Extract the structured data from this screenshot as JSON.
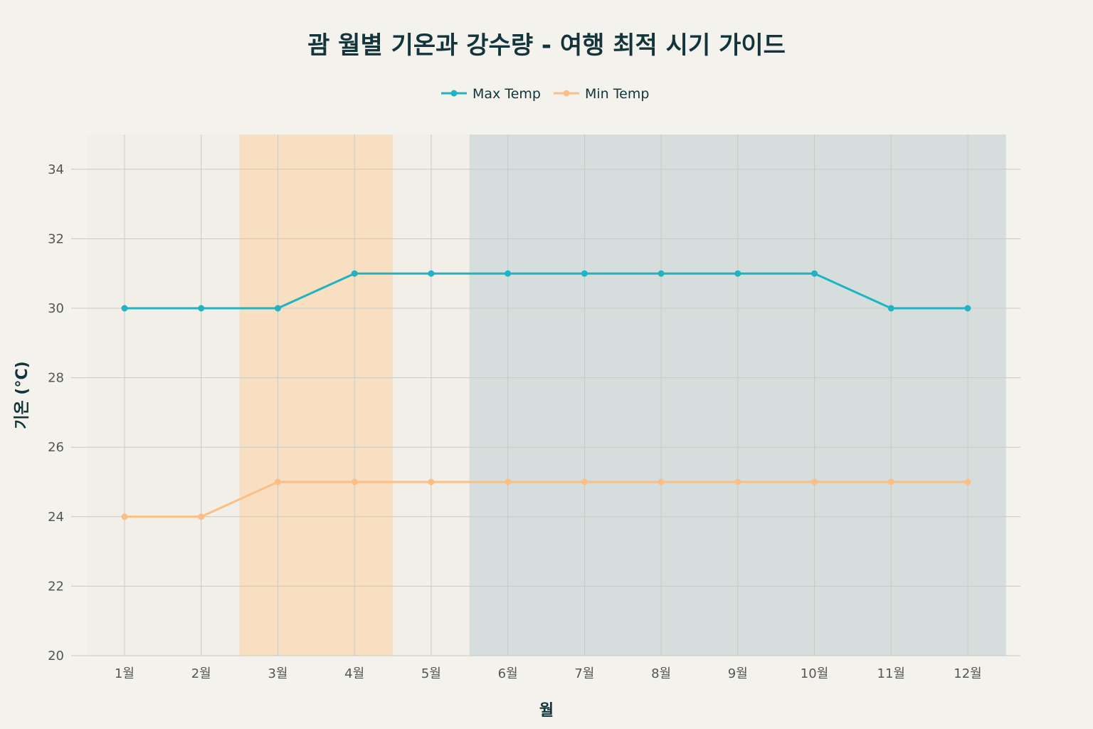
{
  "chart_data": {
    "type": "line",
    "title": "괌 월별 기온과 강수량 - 여행 최적 시기 가이드",
    "xlabel": "월",
    "ylabel": "기온 (°C)",
    "categories": [
      "1월",
      "2월",
      "3월",
      "4월",
      "5월",
      "6월",
      "7월",
      "8월",
      "9월",
      "10월",
      "11월",
      "12월"
    ],
    "ylim": [
      20,
      35
    ],
    "yticks": [
      20,
      22,
      24,
      26,
      28,
      30,
      32,
      34
    ],
    "grid": true,
    "legend_position": "top-center",
    "series": [
      {
        "name": "Max Temp",
        "color": "#1fb3c4",
        "values": [
          30,
          30,
          30,
          31,
          31,
          31,
          31,
          31,
          31,
          31,
          30,
          30
        ]
      },
      {
        "name": "Min Temp",
        "color": "#fbbf85",
        "values": [
          24,
          24,
          25,
          25,
          25,
          25,
          25,
          25,
          25,
          25,
          25,
          25
        ]
      }
    ],
    "shaded_regions": [
      {
        "from_category": "3월",
        "to_category": "4월",
        "color": "#f8dfc1"
      },
      {
        "from_category": "6월",
        "to_category": "12월",
        "color": "#d6dedd"
      }
    ],
    "plot_background": "#f1efe8"
  }
}
